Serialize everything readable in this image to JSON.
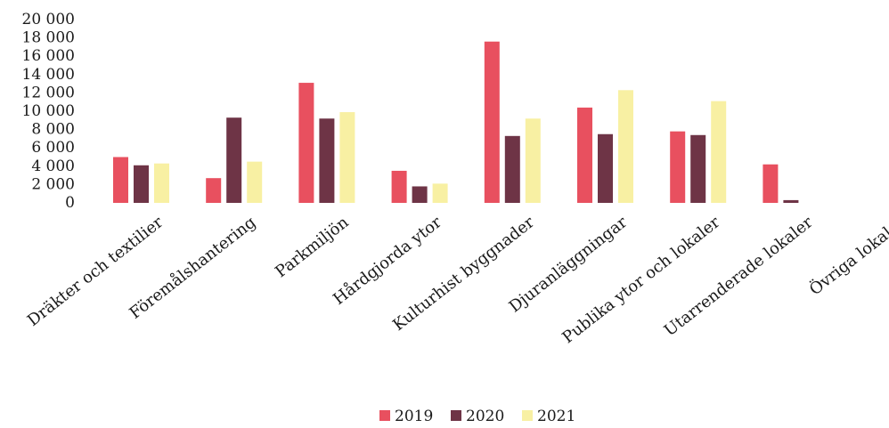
{
  "chart_data": {
    "type": "bar",
    "categories": [
      "Dräkter och textilier",
      "Föremålshantering",
      "Parkmiljön",
      "Hårdgjorda ytor",
      "Kulturhist byggnader",
      "Djuranläggningar",
      "Publika ytor och lokaler",
      "Utarrenderade lokaler",
      "Övriga lokaler"
    ],
    "series": [
      {
        "name": "2019",
        "color": "#e8505f",
        "values": [
          5000,
          2700,
          13100,
          3500,
          17600,
          10400,
          7800,
          4200,
          0
        ]
      },
      {
        "name": "2020",
        "color": "#6e3446",
        "values": [
          4100,
          9300,
          9200,
          1800,
          7300,
          7500,
          7400,
          300,
          0
        ]
      },
      {
        "name": "2021",
        "color": "#f8f0a3",
        "values": [
          4300,
          4500,
          9900,
          2100,
          9200,
          12300,
          11100,
          0,
          0
        ]
      }
    ],
    "ylim": [
      0,
      20000
    ],
    "yticks": [
      "20 000",
      "18 000",
      "16 000",
      "14 000",
      "12 000",
      "10 000",
      "8 000",
      "6 000",
      "4 000",
      "2 000",
      "0"
    ],
    "ytick_values": [
      20000,
      18000,
      16000,
      14000,
      12000,
      10000,
      8000,
      6000,
      4000,
      2000,
      0
    ],
    "grid": false,
    "legend": "bottom"
  }
}
